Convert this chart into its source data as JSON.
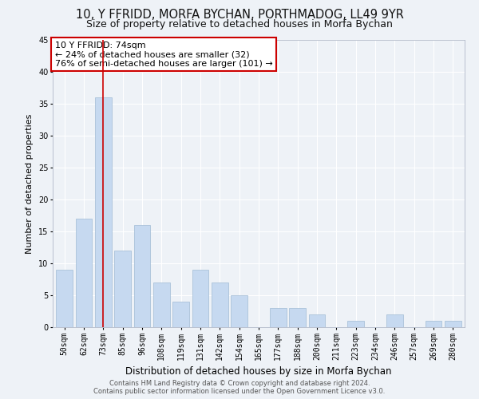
{
  "title": "10, Y FFRIDD, MORFA BYCHAN, PORTHMADOG, LL49 9YR",
  "subtitle": "Size of property relative to detached houses in Morfa Bychan",
  "xlabel": "Distribution of detached houses by size in Morfa Bychan",
  "ylabel": "Number of detached properties",
  "categories": [
    "50sqm",
    "62sqm",
    "73sqm",
    "85sqm",
    "96sqm",
    "108sqm",
    "119sqm",
    "131sqm",
    "142sqm",
    "154sqm",
    "165sqm",
    "177sqm",
    "188sqm",
    "200sqm",
    "211sqm",
    "223sqm",
    "234sqm",
    "246sqm",
    "257sqm",
    "269sqm",
    "280sqm"
  ],
  "values": [
    9,
    17,
    36,
    12,
    16,
    7,
    4,
    9,
    7,
    5,
    0,
    3,
    3,
    2,
    0,
    1,
    0,
    2,
    0,
    1,
    1
  ],
  "bar_color": "#c6d9f0",
  "bar_edge_color": "#a0bbd4",
  "highlight_index": 2,
  "highlight_line_color": "#cc0000",
  "ylim": [
    0,
    45
  ],
  "yticks": [
    0,
    5,
    10,
    15,
    20,
    25,
    30,
    35,
    40,
    45
  ],
  "annotation_title": "10 Y FFRIDD: 74sqm",
  "annotation_line1": "← 24% of detached houses are smaller (32)",
  "annotation_line2": "76% of semi-detached houses are larger (101) →",
  "annotation_box_edge_color": "#cc0000",
  "footer_line1": "Contains HM Land Registry data © Crown copyright and database right 2024.",
  "footer_line2": "Contains public sector information licensed under the Open Government Licence v3.0.",
  "background_color": "#eef2f7",
  "grid_color": "#ffffff",
  "title_fontsize": 10.5,
  "subtitle_fontsize": 9,
  "xlabel_fontsize": 8.5,
  "ylabel_fontsize": 8,
  "tick_fontsize": 7,
  "annotation_fontsize": 8,
  "footer_fontsize": 6
}
